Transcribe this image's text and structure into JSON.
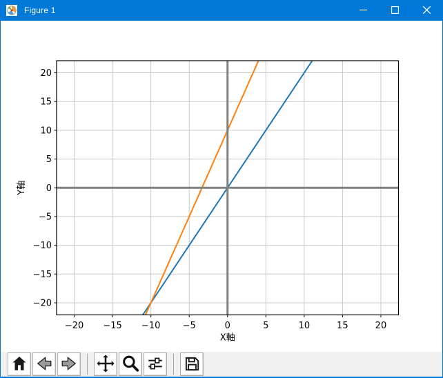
{
  "window": {
    "title": "Figure 1",
    "titlebar_color": "#0078d7",
    "icon": "matplotlib-icon",
    "controls": [
      {
        "name": "minimize",
        "icon": "minimize-icon"
      },
      {
        "name": "maximize",
        "icon": "maximize-icon"
      },
      {
        "name": "close",
        "icon": "close-icon"
      }
    ]
  },
  "chart_data": {
    "type": "line",
    "title": "",
    "xlabel": "X軸",
    "ylabel": "Y軸",
    "xlim": [
      -22.3,
      22.3
    ],
    "ylim": [
      -22.1,
      22.1
    ],
    "xticks": [
      -20,
      -15,
      -10,
      -5,
      0,
      5,
      10,
      15,
      20
    ],
    "yticks": [
      -20,
      -15,
      -10,
      -5,
      0,
      5,
      10,
      15,
      20
    ],
    "grid": true,
    "grid_color": "#c9c9c9",
    "series": [
      {
        "name": "blue-line",
        "equation": "y = 2x",
        "slope": 2,
        "intercept": 0,
        "color": "#1f77b4",
        "points": [
          [
            -20,
            -40
          ],
          [
            20,
            40
          ]
        ]
      },
      {
        "name": "orange-line",
        "equation": "y = 3x + 10",
        "slope": 3,
        "intercept": 10,
        "color": "#ff7f0e",
        "points": [
          [
            -20,
            -50
          ],
          [
            20,
            70
          ]
        ]
      }
    ],
    "reference_lines": [
      {
        "orientation": "horizontal",
        "y": 0,
        "color": "#808080",
        "width": 3
      },
      {
        "orientation": "vertical",
        "x": 0,
        "color": "#808080",
        "width": 3
      }
    ],
    "legend": "none"
  },
  "toolbar": {
    "items": [
      {
        "type": "button",
        "name": "home",
        "icon": "home-icon"
      },
      {
        "type": "button",
        "name": "back",
        "icon": "back-icon"
      },
      {
        "type": "button",
        "name": "forward",
        "icon": "forward-icon"
      },
      {
        "type": "separator"
      },
      {
        "type": "button",
        "name": "pan",
        "icon": "pan-icon"
      },
      {
        "type": "button",
        "name": "zoom",
        "icon": "zoom-icon"
      },
      {
        "type": "button",
        "name": "configure-subplots",
        "icon": "subplots-icon"
      },
      {
        "type": "separator"
      },
      {
        "type": "button",
        "name": "save",
        "icon": "save-icon"
      }
    ]
  }
}
